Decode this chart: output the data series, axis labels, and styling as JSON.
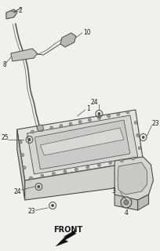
{
  "background_color": "#f0f0ec",
  "line_color": "#4a4a4a",
  "text_color": "#1a1a1a",
  "fill_light": "#e8e8e4",
  "fill_mid": "#d8d8d4",
  "fill_dark": "#c8c8c4",
  "fill_inner": "#dcdcda",
  "front_label": "FRONT",
  "part_numbers": [
    "1",
    "2",
    "3",
    "4",
    "8",
    "10",
    "23",
    "23",
    "24",
    "24",
    "25"
  ]
}
